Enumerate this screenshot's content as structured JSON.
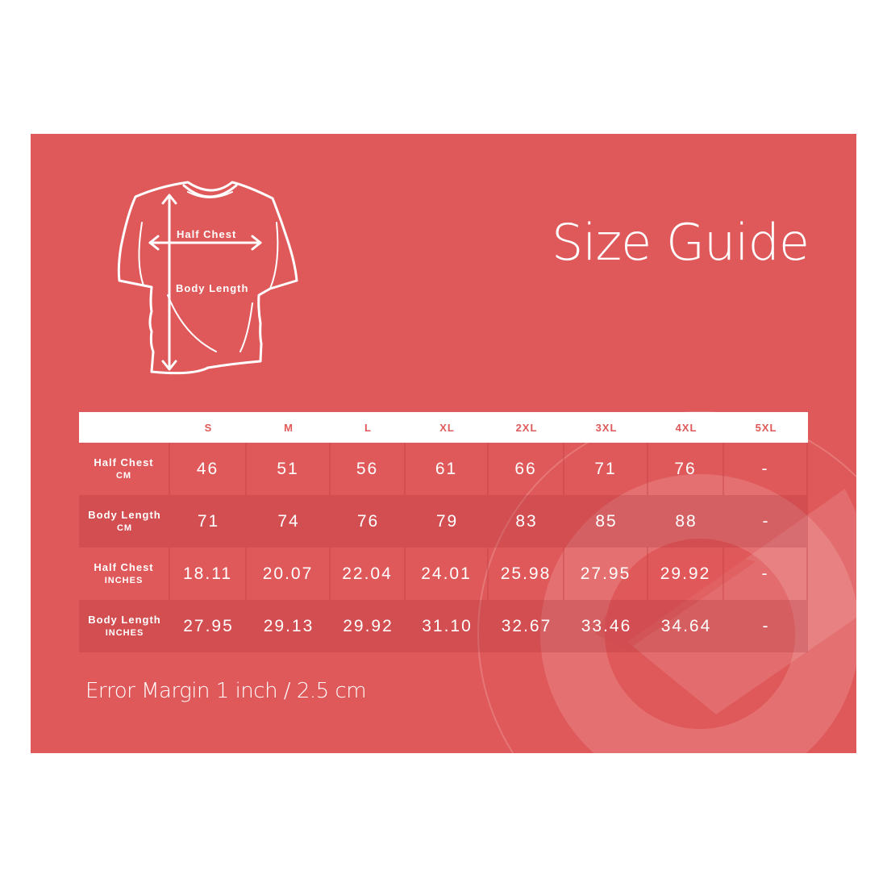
{
  "title": "Size Guide",
  "shirt_labels": {
    "half_chest": "Half Chest",
    "body_length": "Body Length"
  },
  "table": {
    "headers": [
      "",
      "S",
      "M",
      "L",
      "XL",
      "2XL",
      "3XL",
      "4XL",
      "5XL"
    ],
    "rows": [
      {
        "label": "Half Chest",
        "unit": "CM",
        "values": [
          "46",
          "51",
          "56",
          "61",
          "66",
          "71",
          "76",
          "-"
        ]
      },
      {
        "label": "Body Length",
        "unit": "CM",
        "values": [
          "71",
          "74",
          "76",
          "79",
          "83",
          "85",
          "88",
          "-"
        ]
      },
      {
        "label": "Half Chest",
        "unit": "INCHES",
        "values": [
          "18.11",
          "20.07",
          "22.04",
          "24.01",
          "25.98",
          "27.95",
          "29.92",
          "-"
        ]
      },
      {
        "label": "Body Length",
        "unit": "INCHES",
        "values": [
          "27.95",
          "29.13",
          "29.92",
          "31.10",
          "32.67",
          "33.46",
          "34.64",
          "-"
        ]
      }
    ]
  },
  "note": "Error Margin 1 inch / 2.5 cm",
  "colors": {
    "background": "#e0595a",
    "header": "#ffffff",
    "text": "#ffffff"
  }
}
